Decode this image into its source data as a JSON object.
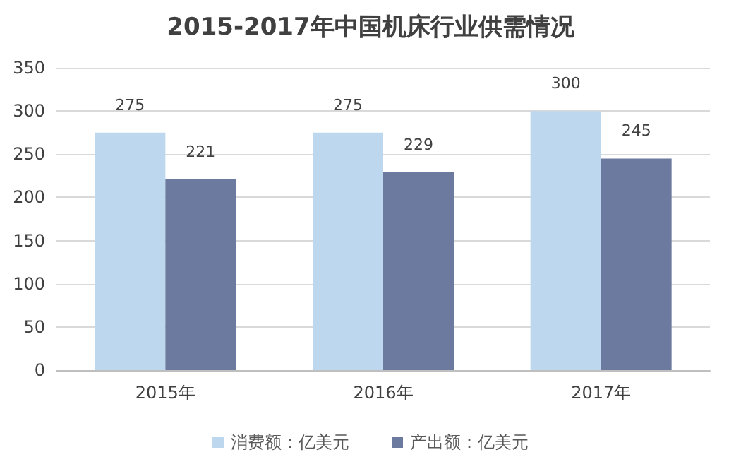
{
  "chart_data": {
    "type": "bar",
    "title": "2015-2017年中国机床行业供需情况",
    "categories": [
      "2015年",
      "2016年",
      "2017年"
    ],
    "series": [
      {
        "name": "消费额：亿美元",
        "color": "#bdd7ee",
        "values": [
          275,
          275,
          300
        ]
      },
      {
        "name": "产出额：亿美元",
        "color": "#6b7a9e",
        "values": [
          221,
          229,
          245
        ]
      }
    ],
    "ylim": [
      0,
      350
    ],
    "yticks": [
      0,
      50,
      100,
      150,
      200,
      250,
      300,
      350
    ],
    "grid": "y",
    "legend": "bottom",
    "data_labels": true
  }
}
